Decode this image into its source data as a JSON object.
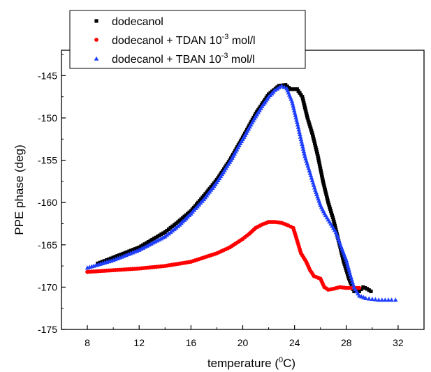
{
  "chart_data": {
    "type": "scatter",
    "title": "",
    "xlabel": "temperature (",
    "xlabel_sup": "0",
    "xlabel_end": "C)",
    "ylabel": "PPE phase (deg)",
    "xlim": [
      6,
      34
    ],
    "ylim": [
      -175,
      -142
    ],
    "xticks": [
      8,
      12,
      16,
      20,
      24,
      28,
      32
    ],
    "yticks": [
      -145,
      -150,
      -155,
      -160,
      -165,
      -170,
      -175
    ],
    "xtick_labels": [
      "8",
      "12",
      "16",
      "20",
      "24",
      "28",
      "32"
    ],
    "ytick_labels": [
      "-145",
      "-150",
      "-155",
      "-160",
      "-165",
      "-170",
      "-175"
    ],
    "grid": false,
    "legend_position": "top-left",
    "series": [
      {
        "name": "dodecanol",
        "legend_parts": [
          "dodecanol",
          "",
          ""
        ],
        "marker": "square",
        "color": "#000000",
        "points": [
          [
            8.8,
            -167.2
          ],
          [
            10,
            -166.5
          ],
          [
            12,
            -165.3
          ],
          [
            14,
            -163.5
          ],
          [
            15,
            -162.3
          ],
          [
            16,
            -161.0
          ],
          [
            17,
            -159.2
          ],
          [
            18,
            -157.3
          ],
          [
            19,
            -155.0
          ],
          [
            20,
            -152.3
          ],
          [
            21,
            -149.5
          ],
          [
            22,
            -147.2
          ],
          [
            22.8,
            -146.2
          ],
          [
            23.3,
            -146.1
          ],
          [
            23.7,
            -146.6
          ],
          [
            24.2,
            -146.6
          ],
          [
            24.6,
            -147.5
          ],
          [
            25,
            -150.0
          ],
          [
            25.4,
            -152.0
          ],
          [
            25.8,
            -154.5
          ],
          [
            26.2,
            -157.5
          ],
          [
            26.6,
            -160.0
          ],
          [
            27,
            -162.0
          ],
          [
            27.4,
            -164.5
          ],
          [
            27.8,
            -167.0
          ],
          [
            28.2,
            -169.0
          ],
          [
            28.6,
            -170.5
          ],
          [
            29,
            -170.5
          ],
          [
            29.3,
            -170.0
          ],
          [
            29.6,
            -170.2
          ],
          [
            29.9,
            -170.5
          ]
        ]
      },
      {
        "name": "dodecanol + TDAN 10-3 mol/l",
        "legend_parts": [
          "dodecanol + TDAN 10",
          "-3",
          " mol/l"
        ],
        "marker": "circle",
        "color": "#ff0000",
        "points": [
          [
            8,
            -168.2
          ],
          [
            10,
            -168.0
          ],
          [
            12,
            -167.8
          ],
          [
            14,
            -167.5
          ],
          [
            16,
            -167.0
          ],
          [
            18,
            -166.0
          ],
          [
            19,
            -165.3
          ],
          [
            20,
            -164.3
          ],
          [
            20.5,
            -163.7
          ],
          [
            21,
            -163.0
          ],
          [
            21.5,
            -162.6
          ],
          [
            22,
            -162.3
          ],
          [
            22.5,
            -162.3
          ],
          [
            23,
            -162.4
          ],
          [
            23.5,
            -162.7
          ],
          [
            23.9,
            -163.0
          ],
          [
            24.2,
            -164.5
          ],
          [
            24.5,
            -166.0
          ],
          [
            24.9,
            -167.0
          ],
          [
            25.2,
            -168.0
          ],
          [
            25.5,
            -168.7
          ],
          [
            26,
            -169.0
          ],
          [
            26.3,
            -170.0
          ],
          [
            26.6,
            -170.3
          ],
          [
            27,
            -170.2
          ],
          [
            27.5,
            -170.0
          ],
          [
            28,
            -170.1
          ],
          [
            28.5,
            -170.1
          ],
          [
            29,
            -170.1
          ]
        ]
      },
      {
        "name": "dodecanol + TBAN 10-3 mol/l",
        "legend_parts": [
          "dodecanol + TBAN 10",
          "-3",
          " mol/l"
        ],
        "marker": "triangle",
        "color": "#1f3fff",
        "points": [
          [
            8,
            -167.7
          ],
          [
            10,
            -166.8
          ],
          [
            12,
            -165.6
          ],
          [
            14,
            -164.0
          ],
          [
            15,
            -162.8
          ],
          [
            16,
            -161.3
          ],
          [
            17,
            -159.6
          ],
          [
            18,
            -157.6
          ],
          [
            19,
            -155.2
          ],
          [
            20,
            -152.5
          ],
          [
            21,
            -149.8
          ],
          [
            21.5,
            -148.6
          ],
          [
            22,
            -147.5
          ],
          [
            22.5,
            -146.7
          ],
          [
            23,
            -146.2
          ],
          [
            23.4,
            -146.5
          ],
          [
            23.8,
            -148.0
          ],
          [
            24.2,
            -150.5
          ],
          [
            24.5,
            -152.5
          ],
          [
            24.8,
            -154.5
          ],
          [
            25.2,
            -156.5
          ],
          [
            25.6,
            -158.5
          ],
          [
            26,
            -160.3
          ],
          [
            26.4,
            -161.5
          ],
          [
            26.8,
            -162.5
          ],
          [
            27.2,
            -163.5
          ],
          [
            27.6,
            -165.2
          ],
          [
            28,
            -166.8
          ],
          [
            28.3,
            -168.5
          ],
          [
            28.6,
            -170.0
          ],
          [
            29,
            -171.0
          ],
          [
            29.5,
            -171.3
          ],
          [
            30,
            -171.4
          ],
          [
            30.5,
            -171.5
          ],
          [
            31,
            -171.5
          ],
          [
            31.5,
            -171.5
          ],
          [
            31.8,
            -171.5
          ]
        ]
      }
    ]
  }
}
